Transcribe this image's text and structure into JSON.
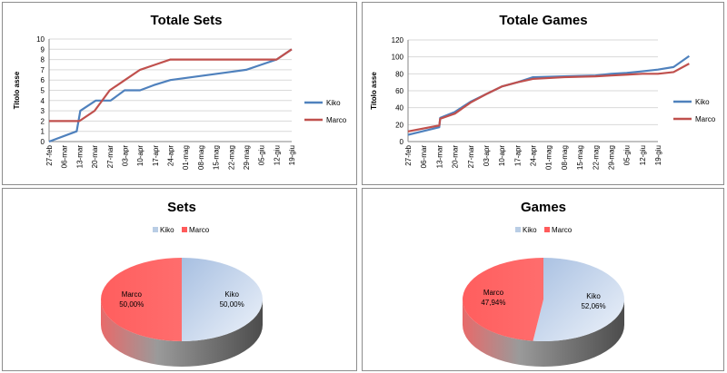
{
  "colors": {
    "kiko": "#4f81bd",
    "marco": "#c0504d",
    "kiko_pie": "#b9cde5",
    "marco_pie": "#ff5b5b"
  },
  "chart_data": [
    {
      "type": "line",
      "title": "Totale Sets",
      "ylabel": "Titolo asse",
      "ylim": [
        0,
        10
      ],
      "yticks": [
        "0",
        "1",
        "2",
        "3",
        "4",
        "5",
        "6",
        "7",
        "8",
        "9",
        "10"
      ],
      "x": [
        "27-feb",
        "06-mar",
        "13-mar",
        "20-mar",
        "27-mar",
        "03-apr",
        "10-apr",
        "17-apr",
        "24-apr",
        "01-mag",
        "08-mag",
        "15-mag",
        "22-mag",
        "29-mag",
        "05-giu",
        "12-giu",
        "19-giu"
      ],
      "legend": "right",
      "series": [
        {
          "name": "Kiko",
          "values": [
            0,
            1,
            3,
            4,
            4,
            5,
            5,
            5.5,
            6,
            6.2,
            6.4,
            6.6,
            6.8,
            7,
            7.5,
            8,
            9
          ],
          "px": [
            0,
            0.91,
            1.03,
            1.54,
            2.03,
            2.49,
            3.0,
            3.45,
            4.0,
            4.5,
            5.0,
            5.5,
            6.0,
            6.5,
            7.0,
            7.5,
            8.0
          ]
        },
        {
          "name": "Marco",
          "values": [
            2,
            2,
            3,
            5,
            6,
            7,
            7.5,
            8,
            8,
            8,
            8,
            8,
            8,
            8,
            8,
            8,
            9
          ],
          "px": [
            0,
            1.0,
            1.5,
            2.0,
            2.5,
            3.0,
            3.5,
            4.0,
            4.5,
            5.0,
            5.5,
            6.0,
            6.5,
            7.0,
            7.5,
            7.5,
            8.0
          ]
        }
      ]
    },
    {
      "type": "line",
      "title": "Totale Games",
      "ylabel": "Titolo asse",
      "ylim": [
        0,
        120
      ],
      "yticks": [
        "0",
        "20",
        "40",
        "60",
        "80",
        "100",
        "120"
      ],
      "x": [
        "27-feb",
        "06-mar",
        "13-mar",
        "20-mar",
        "27-mar",
        "03-apr",
        "10-apr",
        "17-apr",
        "24-apr",
        "01-mag",
        "08-mag",
        "15-mag",
        "22-mag",
        "29-mag",
        "05-giu",
        "12-giu",
        "19-giu"
      ],
      "legend": "right",
      "series": [
        {
          "name": "Kiko",
          "values": [
            8,
            17,
            28,
            35,
            47,
            56,
            65,
            70,
            76,
            77,
            78,
            80,
            81,
            83,
            85,
            88,
            101
          ],
          "px": [
            0,
            1.0,
            1.03,
            1.5,
            2.0,
            2.5,
            3.0,
            3.5,
            4.0,
            5.0,
            6.0,
            6.5,
            7.0,
            7.5,
            8.0,
            8.5,
            9.0
          ]
        },
        {
          "name": "Marco",
          "values": [
            12,
            19,
            27,
            33,
            46,
            56,
            65,
            70,
            74,
            76,
            77,
            78,
            79,
            80,
            80,
            82,
            92
          ],
          "px": [
            0,
            1.0,
            1.03,
            1.5,
            2.0,
            2.5,
            3.0,
            3.5,
            4.0,
            5.0,
            6.0,
            6.5,
            7.0,
            7.5,
            8.0,
            8.5,
            9.0
          ]
        }
      ]
    },
    {
      "type": "pie",
      "title": "Sets",
      "legend": "top",
      "series": [
        {
          "name": "Kiko",
          "value": 50.0,
          "label_name": "Kiko",
          "label_pct": "50,00%"
        },
        {
          "name": "Marco",
          "value": 50.0,
          "label_name": "Marco",
          "label_pct": "50,00%"
        }
      ]
    },
    {
      "type": "pie",
      "title": "Games",
      "legend": "top",
      "series": [
        {
          "name": "Kiko",
          "value": 52.06,
          "label_name": "Kiko",
          "label_pct": "52,06%"
        },
        {
          "name": "Marco",
          "value": 47.94,
          "label_name": "Marco",
          "label_pct": "47,94%"
        }
      ]
    }
  ]
}
